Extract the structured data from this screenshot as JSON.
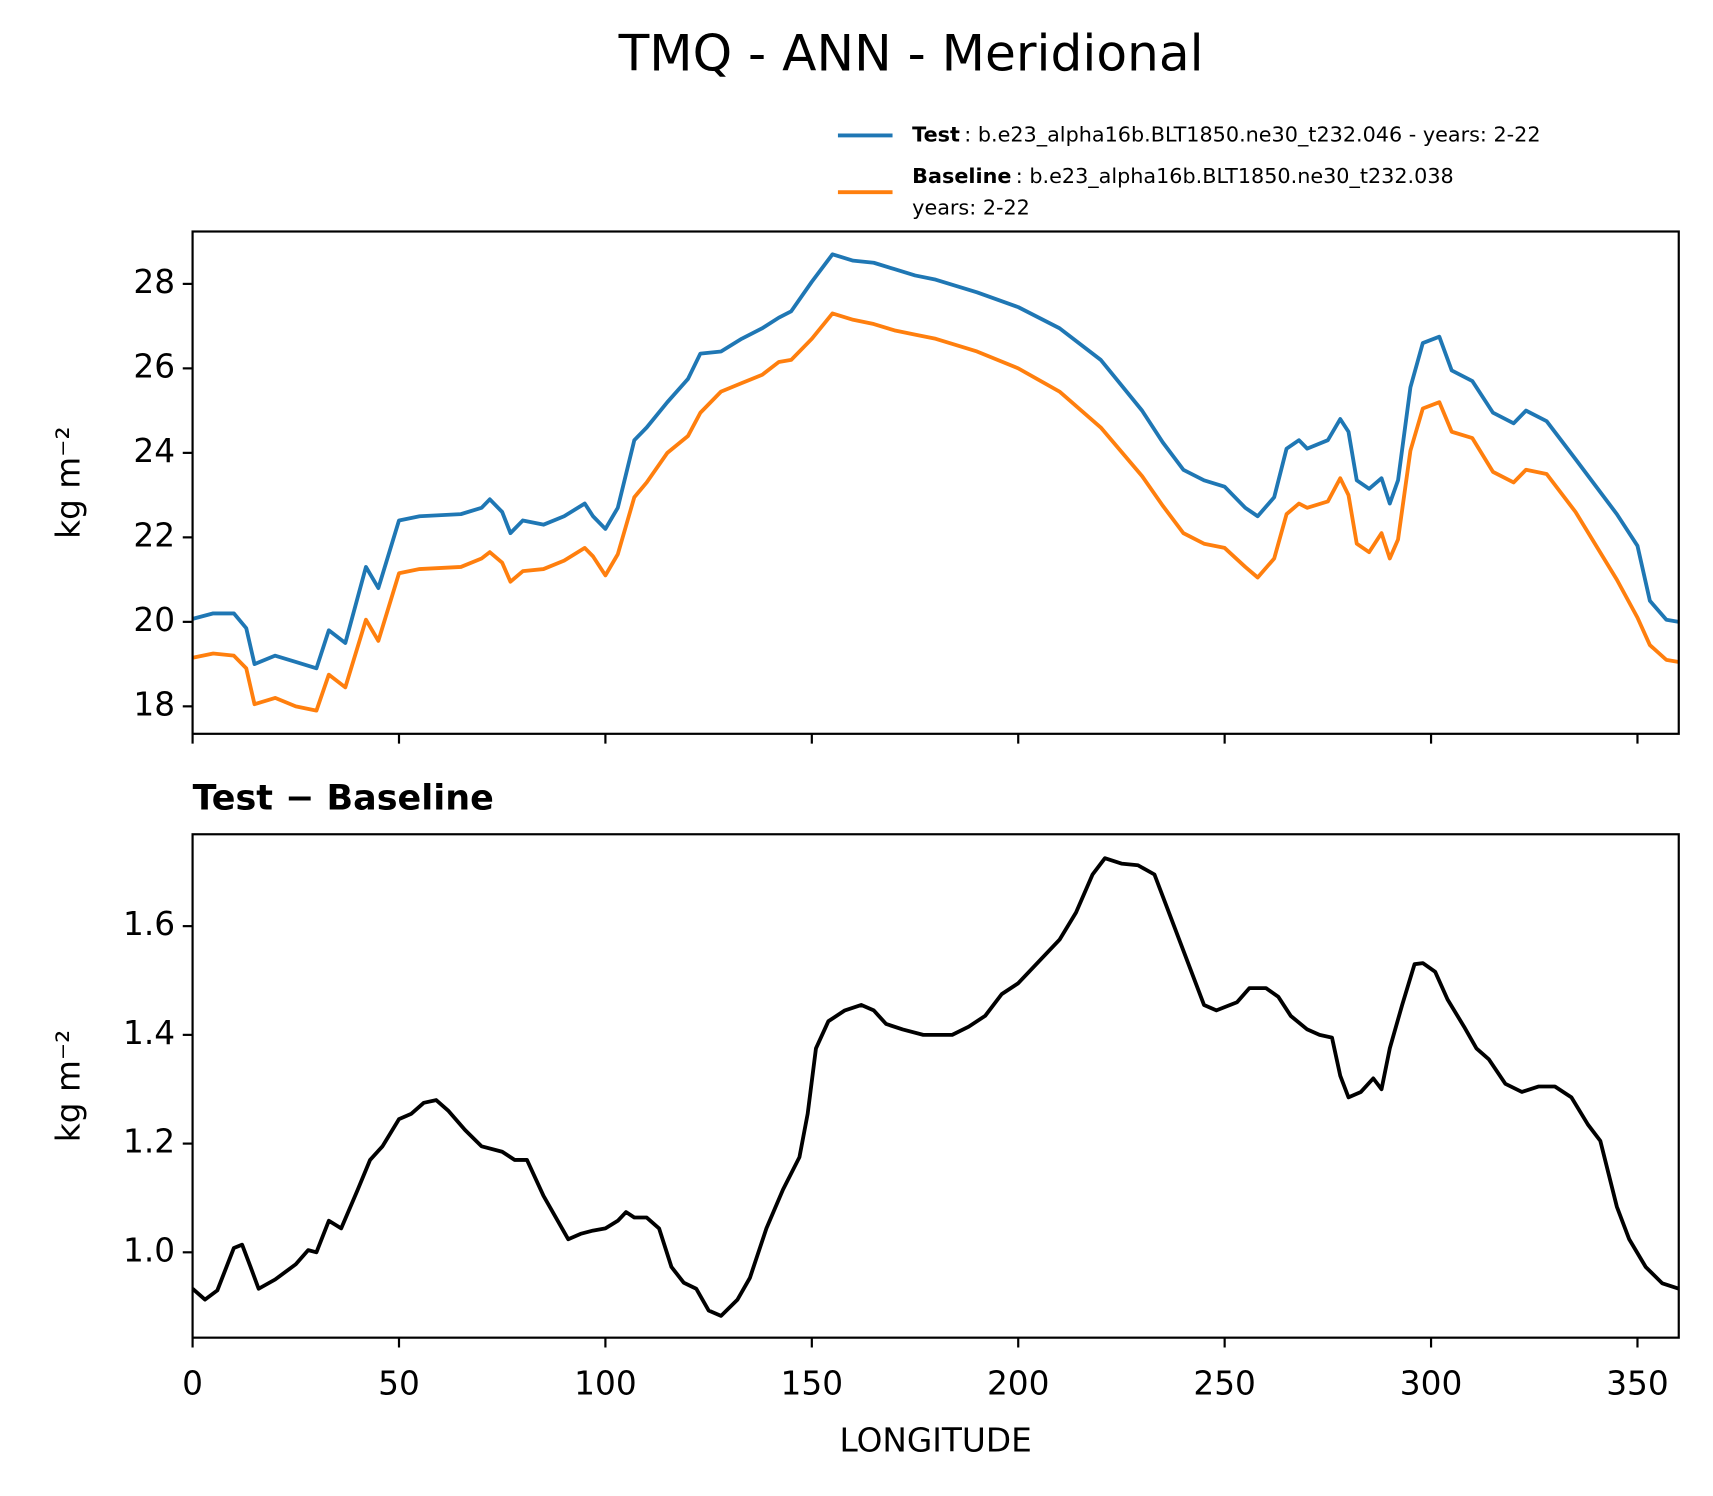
{
  "chart_data": [
    {
      "type": "line",
      "title": "TMQ - ANN - Meridional",
      "ylabel": "kg m⁻²",
      "x": [
        0,
        5,
        10,
        13,
        15,
        20,
        25,
        30,
        33,
        37,
        42,
        45,
        50,
        55,
        65,
        70,
        72,
        75,
        77,
        80,
        85,
        90,
        95,
        97,
        100,
        103,
        107,
        110,
        115,
        120,
        123,
        128,
        133,
        138,
        142,
        145,
        150,
        155,
        160,
        165,
        170,
        175,
        180,
        190,
        200,
        210,
        220,
        230,
        235,
        240,
        245,
        250,
        255,
        258,
        262,
        265,
        268,
        270,
        275,
        278,
        280,
        282,
        285,
        288,
        290,
        292,
        295,
        298,
        302,
        305,
        310,
        315,
        320,
        323,
        328,
        335,
        345,
        350,
        353,
        357,
        360
      ],
      "series": [
        {
          "name": "Test",
          "description": [
            ": b.e23_alpha16b.BLT1850.ne30_t232.046 - years: 2-22"
          ],
          "color": "#1f77b4",
          "values": [
            20.07,
            20.2,
            20.2,
            19.85,
            19.0,
            19.2,
            19.05,
            18.9,
            19.8,
            19.5,
            21.3,
            20.8,
            22.4,
            22.5,
            22.55,
            22.7,
            22.9,
            22.6,
            22.1,
            22.4,
            22.3,
            22.5,
            22.8,
            22.5,
            22.2,
            22.7,
            24.3,
            24.6,
            25.2,
            25.75,
            26.35,
            26.4,
            26.7,
            26.95,
            27.2,
            27.35,
            28.05,
            28.7,
            28.55,
            28.5,
            28.35,
            28.2,
            28.1,
            27.8,
            27.45,
            26.95,
            26.2,
            25.0,
            24.25,
            23.6,
            23.35,
            23.2,
            22.7,
            22.5,
            22.95,
            24.1,
            24.3,
            24.1,
            24.3,
            24.8,
            24.5,
            23.35,
            23.15,
            23.4,
            22.8,
            23.35,
            25.55,
            26.6,
            26.75,
            25.95,
            25.7,
            24.95,
            24.7,
            25.0,
            24.75,
            23.85,
            22.55,
            21.8,
            20.5,
            20.05,
            20.0
          ]
        },
        {
          "name": "Baseline",
          "description": [
            ": b.e23_alpha16b.BLT1850.ne30_t232.038",
            "years: 2-22"
          ],
          "color": "#ff7f0e",
          "values": [
            19.15,
            19.25,
            19.2,
            18.9,
            18.05,
            18.2,
            18.0,
            17.9,
            18.75,
            18.45,
            20.05,
            19.55,
            21.15,
            21.25,
            21.3,
            21.5,
            21.65,
            21.4,
            20.95,
            21.2,
            21.25,
            21.45,
            21.75,
            21.55,
            21.1,
            21.6,
            22.95,
            23.3,
            24.0,
            24.4,
            24.95,
            25.45,
            25.65,
            25.85,
            26.15,
            26.2,
            26.7,
            27.3,
            27.15,
            27.05,
            26.9,
            26.8,
            26.7,
            26.4,
            26.0,
            25.45,
            24.6,
            23.45,
            22.75,
            22.1,
            21.85,
            21.75,
            21.3,
            21.05,
            21.5,
            22.55,
            22.8,
            22.7,
            22.85,
            23.4,
            23.0,
            21.85,
            21.65,
            22.1,
            21.5,
            21.95,
            24.05,
            25.05,
            25.2,
            24.5,
            24.35,
            23.55,
            23.3,
            23.6,
            23.5,
            22.6,
            21.0,
            20.1,
            19.45,
            19.1,
            19.05
          ]
        }
      ],
      "xlim": [
        0,
        360
      ],
      "xticks": [
        0,
        50,
        100,
        150,
        200,
        250,
        300,
        350
      ],
      "ylim": [
        17.35,
        29.24
      ],
      "yticks": [
        18,
        20,
        22,
        24,
        26,
        28
      ]
    },
    {
      "type": "line",
      "title": "Test − Baseline",
      "ylabel": "kg m⁻²",
      "xlabel": "LONGITUDE",
      "x": [
        0,
        3,
        6,
        10,
        12,
        14,
        16,
        20,
        25,
        28,
        30,
        33,
        36,
        40,
        43,
        46,
        50,
        53,
        56,
        59,
        62,
        66,
        70,
        75,
        78,
        81,
        85,
        88,
        91,
        94,
        97,
        100,
        103,
        105,
        107,
        110,
        113,
        116,
        119,
        122,
        125,
        128,
        132,
        135,
        139,
        143,
        147,
        149,
        151,
        154,
        158,
        162,
        165,
        168,
        172,
        177,
        184,
        188,
        192,
        196,
        200,
        205,
        210,
        214,
        218,
        221,
        225,
        229,
        233,
        236,
        240,
        245,
        248,
        253,
        256,
        260,
        263,
        266,
        270,
        273,
        276,
        278,
        280,
        283,
        286,
        288,
        290,
        293,
        296,
        298,
        301,
        304,
        308,
        311,
        314,
        318,
        322,
        326,
        330,
        334,
        338,
        341,
        345,
        348,
        352,
        356,
        360
      ],
      "series": [
        {
          "name": "Test − Baseline",
          "color": "#000000",
          "values": [
            0.933,
            0.913,
            0.93,
            1.008,
            1.014,
            0.974,
            0.933,
            0.95,
            0.978,
            1.004,
            1.0,
            1.058,
            1.044,
            1.115,
            1.17,
            1.195,
            1.245,
            1.255,
            1.275,
            1.28,
            1.26,
            1.225,
            1.195,
            1.185,
            1.17,
            1.17,
            1.104,
            1.064,
            1.024,
            1.034,
            1.04,
            1.044,
            1.058,
            1.074,
            1.064,
            1.064,
            1.044,
            0.973,
            0.944,
            0.933,
            0.893,
            0.883,
            0.913,
            0.953,
            1.044,
            1.115,
            1.175,
            1.255,
            1.375,
            1.425,
            1.445,
            1.455,
            1.445,
            1.42,
            1.41,
            1.4,
            1.4,
            1.415,
            1.435,
            1.475,
            1.495,
            1.535,
            1.575,
            1.625,
            1.695,
            1.725,
            1.715,
            1.712,
            1.695,
            1.635,
            1.555,
            1.455,
            1.445,
            1.46,
            1.486,
            1.486,
            1.47,
            1.435,
            1.41,
            1.4,
            1.395,
            1.325,
            1.285,
            1.295,
            1.32,
            1.3,
            1.375,
            1.455,
            1.53,
            1.532,
            1.516,
            1.465,
            1.415,
            1.375,
            1.355,
            1.31,
            1.295,
            1.305,
            1.305,
            1.285,
            1.235,
            1.205,
            1.084,
            1.024,
            0.973,
            0.943,
            0.933
          ]
        }
      ],
      "xlim": [
        0,
        360
      ],
      "xticks": [
        0,
        50,
        100,
        150,
        200,
        250,
        300,
        350
      ],
      "ylim": [
        0.843,
        1.769
      ],
      "yticks": [
        {
          "value": 1,
          "label": "1.0"
        },
        1.2,
        1.4,
        1.6
      ]
    }
  ]
}
